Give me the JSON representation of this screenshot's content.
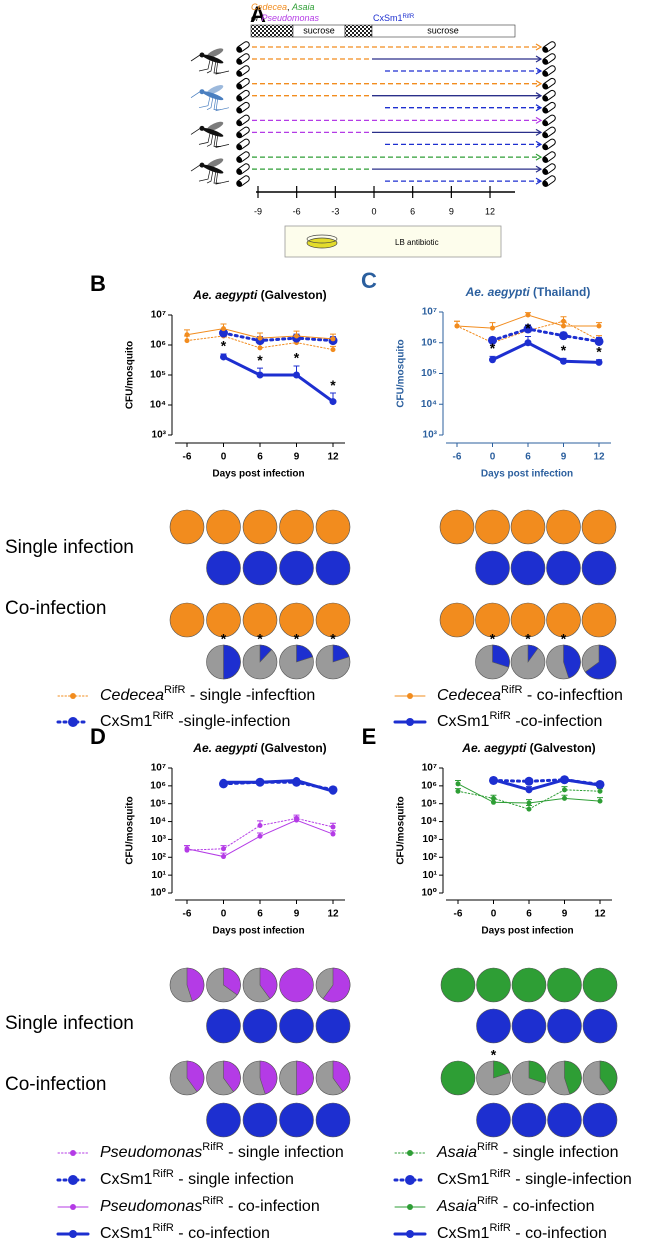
{
  "diagram": {
    "letter": "A",
    "inoculum_line_1": [
      "Cedecea",
      ", ",
      "Asaia"
    ],
    "inoculum_line_2": [
      "or ",
      "Pseudomonas"
    ],
    "sucrose_1": "sucrose",
    "added_strain": [
      "CxSm1",
      "RifR"
    ],
    "sucrose_2": "sucrose",
    "timeline": [
      -9,
      -6,
      -3,
      0,
      6,
      9,
      12
    ],
    "medium": "LB antibiotic"
  },
  "chart_data": [
    {
      "type": "line",
      "letter": "B",
      "title_parts": [
        "Ae. aegypti",
        " (Galveston)"
      ],
      "axis_color": "#000000",
      "xlabel": "Days post infection",
      "ylabel": "CFU/mosquito",
      "log_y": true,
      "categories": [
        "-6",
        "0",
        "6",
        "9",
        "12"
      ],
      "ylim": [
        1000,
        10000000
      ],
      "yticks": [
        {
          "value": 1000,
          "label": "10³"
        },
        {
          "value": 10000,
          "label": "10⁴"
        },
        {
          "value": 100000,
          "label": "10⁵"
        },
        {
          "value": 1000000,
          "label": "10⁶"
        },
        {
          "value": 10000000,
          "label": "10⁷"
        }
      ],
      "series": [
        {
          "name_parts": [
            "Cedecea",
            "RifR",
            " - single -infecftion"
          ],
          "color": "#f28c1e",
          "style": "dotted",
          "values": [
            1400000,
            2000000,
            800000,
            1200000,
            700000
          ],
          "errors": [
            600000,
            800000,
            300000,
            500000,
            200000
          ]
        },
        {
          "name_parts": [
            "CxSm1",
            "RifR",
            " -single-infection"
          ],
          "color": "#1d2fd0",
          "style": "dotted-bold",
          "values": [
            null,
            2500000,
            1400000,
            1700000,
            1400000
          ],
          "errors": [
            null,
            800000,
            500000,
            600000,
            500000
          ]
        },
        {
          "name_parts": [
            "Cedecea",
            "RifR",
            " - co-infecftion"
          ],
          "color": "#f28c1e",
          "style": "solid",
          "values": [
            2200000,
            3500000,
            1700000,
            2000000,
            1600000
          ],
          "errors": [
            1000000,
            1500000,
            800000,
            900000,
            700000
          ]
        },
        {
          "name_parts": [
            "CxSm1",
            "RifR",
            " -co-infection"
          ],
          "color": "#1d2fd0",
          "style": "solid-bold",
          "values": [
            null,
            400000,
            100000,
            100000,
            13000
          ],
          "errors": [
            null,
            100000,
            70000,
            100000,
            12000
          ],
          "point_labels": [
            null,
            "*",
            "*",
            "*",
            "*"
          ]
        }
      ],
      "pie_row_labels": [
        "Single infection",
        "Co-infection"
      ],
      "pies": [
        {
          "color": "#f28c1e",
          "values": [
            100,
            100,
            100,
            100,
            100
          ]
        },
        {
          "color": "#1d2fd0",
          "values": [
            null,
            100,
            100,
            100,
            100
          ]
        },
        {
          "color": "#f28c1e",
          "values": [
            100,
            100,
            100,
            100,
            100
          ]
        },
        {
          "color": "#1d2fd0",
          "values": [
            null,
            50,
            12,
            20,
            20
          ],
          "labels": [
            null,
            "*",
            "*",
            "*",
            "*"
          ]
        }
      ]
    },
    {
      "type": "line",
      "letter": "C",
      "title_parts": [
        "Ae. aegypti",
        " (Thailand)"
      ],
      "axis_color": "#2b5f9e",
      "xlabel": "Days post infection",
      "ylabel": "CFU/mosquito",
      "log_y": true,
      "categories": [
        "-6",
        "0",
        "6",
        "9",
        "12"
      ],
      "ylim": [
        1000,
        10000000
      ],
      "yticks": [
        {
          "value": 1000,
          "label": "10³"
        },
        {
          "value": 10000,
          "label": "10⁴"
        },
        {
          "value": 100000,
          "label": "10⁵"
        },
        {
          "value": 1000000,
          "label": "10⁶"
        },
        {
          "value": 10000000,
          "label": "10⁷"
        }
      ],
      "series": [
        {
          "color": "#f28c1e",
          "style": "dotted",
          "values": [
            3500000,
            1000000,
            2500000,
            5000000,
            1200000
          ],
          "errors": [
            1500000,
            500000,
            1000000,
            2000000,
            500000
          ]
        },
        {
          "color": "#1d2fd0",
          "style": "dotted-bold",
          "values": [
            null,
            1200000,
            2800000,
            1700000,
            1100000
          ],
          "errors": [
            null,
            300000,
            1000000,
            500000,
            400000
          ]
        },
        {
          "color": "#f28c1e",
          "style": "solid",
          "values": [
            3500000,
            3000000,
            8000000,
            3500000,
            3500000
          ],
          "errors": [
            1500000,
            1500000,
            1500000,
            1500000,
            1000000
          ]
        },
        {
          "color": "#1d2fd0",
          "style": "solid-bold",
          "values": [
            null,
            280000,
            1000000,
            250000,
            230000
          ],
          "errors": [
            null,
            80000,
            600000,
            60000,
            50000
          ],
          "point_labels": [
            null,
            "*",
            "*",
            "*",
            "*"
          ]
        }
      ],
      "pies": [
        {
          "color": "#f28c1e",
          "values": [
            100,
            100,
            100,
            100,
            100
          ]
        },
        {
          "color": "#1d2fd0",
          "values": [
            null,
            100,
            100,
            100,
            100
          ]
        },
        {
          "color": "#f28c1e",
          "values": [
            100,
            100,
            100,
            100,
            100
          ]
        },
        {
          "color": "#1d2fd0",
          "values": [
            null,
            30,
            10,
            45,
            65
          ],
          "labels": [
            null,
            "*",
            "*",
            "*",
            null
          ]
        }
      ]
    },
    {
      "type": "line",
      "letter": "D",
      "title_parts": [
        "Ae. aegypti",
        " (Galveston)"
      ],
      "axis_color": "#000000",
      "xlabel": "Days post infection",
      "ylabel": "CFU/mosquito",
      "log_y": true,
      "categories": [
        "-6",
        "0",
        "6",
        "9",
        "12"
      ],
      "ylim": [
        1,
        10000000
      ],
      "yticks": [
        {
          "value": 1,
          "label": "10⁰"
        },
        {
          "value": 10,
          "label": "10¹"
        },
        {
          "value": 100,
          "label": "10²"
        },
        {
          "value": 1000,
          "label": "10³"
        },
        {
          "value": 10000,
          "label": "10⁴"
        },
        {
          "value": 100000,
          "label": "10⁵"
        },
        {
          "value": 1000000,
          "label": "10⁶"
        },
        {
          "value": 10000000,
          "label": "10⁷"
        }
      ],
      "series": [
        {
          "name_parts": [
            "Pseudomonas",
            "RifR",
            " - single infection"
          ],
          "color": "#b43be6",
          "style": "dotted",
          "values": [
            250,
            300,
            6000,
            15000,
            5000
          ],
          "errors": [
            200,
            150,
            5000,
            8000,
            3000
          ]
        },
        {
          "name_parts": [
            "CxSm1",
            "RifR",
            " - single infection"
          ],
          "color": "#1d2fd0",
          "style": "dotted-bold",
          "values": [
            null,
            1300000,
            1600000,
            1600000,
            600000
          ],
          "errors": [
            null,
            300000,
            300000,
            400000,
            200000
          ]
        },
        {
          "name_parts": [
            "Pseudomonas",
            "RifR",
            " - co-infection"
          ],
          "color": "#b43be6",
          "style": "solid",
          "values": [
            300,
            110,
            1500,
            12000,
            2000
          ],
          "errors": [
            150,
            60,
            800,
            6000,
            1000
          ]
        },
        {
          "name_parts": [
            "CxSm1",
            "RifR",
            " - co-infection"
          ],
          "color": "#1d2fd0",
          "style": "solid-bold",
          "values": [
            null,
            1600000,
            1600000,
            2000000,
            500000
          ],
          "errors": [
            null,
            300000,
            400000,
            500000,
            150000
          ]
        }
      ],
      "pie_row_labels": [
        "Single infection",
        "Co-infection"
      ],
      "pies": [
        {
          "color": "#b43be6",
          "values": [
            45,
            35,
            40,
            100,
            60
          ]
        },
        {
          "color": "#1d2fd0",
          "values": [
            null,
            100,
            100,
            100,
            100
          ]
        },
        {
          "color": "#b43be6",
          "values": [
            40,
            40,
            45,
            50,
            40
          ]
        },
        {
          "color": "#1d2fd0",
          "values": [
            null,
            100,
            100,
            100,
            100
          ]
        }
      ]
    },
    {
      "type": "line",
      "letter": "E",
      "title_parts": [
        "Ae. aegypti",
        " (Galveston)"
      ],
      "axis_color": "#000000",
      "xlabel": "Days post infection",
      "ylabel": "CFU/mosquito",
      "log_y": true,
      "categories": [
        "-6",
        "0",
        "6",
        "9",
        "12"
      ],
      "ylim": [
        1,
        10000000
      ],
      "yticks": [
        {
          "value": 1,
          "label": "10⁰"
        },
        {
          "value": 10,
          "label": "10¹"
        },
        {
          "value": 100,
          "label": "10²"
        },
        {
          "value": 1000,
          "label": "10³"
        },
        {
          "value": 10000,
          "label": "10⁴"
        },
        {
          "value": 100000,
          "label": "10⁵"
        },
        {
          "value": 1000000,
          "label": "10⁶"
        },
        {
          "value": 10000000,
          "label": "10⁷"
        }
      ],
      "series": [
        {
          "name_parts": [
            "Asaia",
            "RifR",
            " - single infection"
          ],
          "color": "#2e9e35",
          "style": "dotted",
          "values": [
            500000,
            200000,
            50000,
            600000,
            500000
          ],
          "errors": [
            200000,
            100000,
            30000,
            300000,
            200000
          ]
        },
        {
          "name_parts": [
            "CxSm1",
            "RifR",
            " - single-infection"
          ],
          "color": "#1d2fd0",
          "style": "dotted-bold",
          "values": [
            null,
            2000000,
            1800000,
            2200000,
            1200000
          ],
          "errors": [
            null,
            500000,
            400000,
            600000,
            300000
          ]
        },
        {
          "name_parts": [
            "Asaia",
            "RifR",
            " - co-infection"
          ],
          "color": "#2e9e35",
          "style": "solid",
          "values": [
            1300000,
            120000,
            110000,
            200000,
            140000
          ],
          "errors": [
            700000,
            80000,
            60000,
            100000,
            80000
          ]
        },
        {
          "name_parts": [
            "CxSm1",
            "RifR",
            " - co-infection"
          ],
          "color": "#1d2fd0",
          "style": "solid-bold",
          "values": [
            null,
            2200000,
            600000,
            2200000,
            1100000
          ],
          "errors": [
            null,
            500000,
            300000,
            500000,
            300000
          ]
        }
      ],
      "pies": [
        {
          "color": "#2e9e35",
          "values": [
            100,
            100,
            100,
            100,
            100
          ]
        },
        {
          "color": "#1d2fd0",
          "values": [
            null,
            100,
            100,
            100,
            100
          ]
        },
        {
          "color": "#2e9e35",
          "values": [
            100,
            20,
            30,
            45,
            40
          ],
          "labels": [
            null,
            "*",
            null,
            null,
            null
          ]
        },
        {
          "color": "#1d2fd0",
          "values": [
            null,
            100,
            100,
            100,
            100
          ]
        }
      ]
    }
  ]
}
